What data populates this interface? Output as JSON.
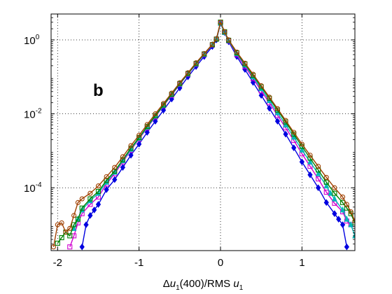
{
  "chart_data": {
    "type": "line",
    "panel_label": "b",
    "xlabel": {
      "prefix": "Δ",
      "var": "u",
      "sub": "1",
      "middle": "(400)/RMS ",
      "var2": "u",
      "sub2": "1"
    },
    "ylabel": "",
    "xlim": [
      -2.08,
      1.65
    ],
    "ylim_log10": [
      -5.7,
      0.7
    ],
    "y_scale": "log",
    "grid": true,
    "x_ticks": [
      {
        "value": -2,
        "label": "-2"
      },
      {
        "value": -1,
        "label": "-1"
      },
      {
        "value": 0,
        "label": "0"
      },
      {
        "value": 1,
        "label": "1"
      }
    ],
    "y_ticks": [
      {
        "exp": 0,
        "base": "10",
        "sup": "0"
      },
      {
        "exp": -2,
        "base": "10",
        "sup": "-2"
      },
      {
        "exp": -4,
        "base": "10",
        "sup": "-4"
      }
    ],
    "series": [
      {
        "color": "#0000e0",
        "marker": "diamond",
        "points": [
          [
            -1.7,
            -5.6
          ],
          [
            -1.65,
            -5.0
          ],
          [
            -1.6,
            -4.75
          ],
          [
            -1.55,
            -4.6
          ],
          [
            -1.5,
            -4.45
          ],
          [
            -1.4,
            -4.05
          ],
          [
            -1.3,
            -3.78
          ],
          [
            -1.2,
            -3.45
          ],
          [
            -1.1,
            -3.12
          ],
          [
            -1.0,
            -2.82
          ],
          [
            -0.9,
            -2.5
          ],
          [
            -0.8,
            -2.2
          ],
          [
            -0.7,
            -1.9
          ],
          [
            -0.6,
            -1.6
          ],
          [
            -0.5,
            -1.3
          ],
          [
            -0.4,
            -1.0
          ],
          [
            -0.3,
            -0.72
          ],
          [
            -0.2,
            -0.45
          ],
          [
            -0.1,
            -0.18
          ],
          [
            -0.05,
            0.0
          ],
          [
            0.0,
            0.45
          ],
          [
            0.05,
            0.2
          ],
          [
            0.1,
            -0.05
          ],
          [
            0.2,
            -0.45
          ],
          [
            0.3,
            -0.8
          ],
          [
            0.4,
            -1.15
          ],
          [
            0.5,
            -1.5
          ],
          [
            0.6,
            -1.85
          ],
          [
            0.7,
            -2.2
          ],
          [
            0.8,
            -2.55
          ],
          [
            0.9,
            -2.92
          ],
          [
            1.0,
            -3.3
          ],
          [
            1.1,
            -3.65
          ],
          [
            1.2,
            -4.0
          ],
          [
            1.3,
            -4.4
          ],
          [
            1.4,
            -4.7
          ],
          [
            1.45,
            -4.85
          ],
          [
            1.5,
            -5.0
          ],
          [
            1.55,
            -5.6
          ]
        ]
      },
      {
        "color": "#d000d0",
        "marker": "square",
        "points": [
          [
            -1.85,
            -5.6
          ],
          [
            -1.8,
            -5.3
          ],
          [
            -1.75,
            -4.95
          ],
          [
            -1.7,
            -4.7
          ],
          [
            -1.6,
            -4.45
          ],
          [
            -1.5,
            -4.25
          ],
          [
            -1.4,
            -3.9
          ],
          [
            -1.3,
            -3.62
          ],
          [
            -1.2,
            -3.3
          ],
          [
            -1.1,
            -2.98
          ],
          [
            -1.0,
            -2.68
          ],
          [
            -0.9,
            -2.38
          ],
          [
            -0.8,
            -2.08
          ],
          [
            -0.7,
            -1.78
          ],
          [
            -0.6,
            -1.5
          ],
          [
            -0.5,
            -1.2
          ],
          [
            -0.4,
            -0.93
          ],
          [
            -0.3,
            -0.66
          ],
          [
            -0.2,
            -0.4
          ],
          [
            -0.1,
            -0.14
          ],
          [
            -0.05,
            0.02
          ],
          [
            0.0,
            0.45
          ],
          [
            0.05,
            0.2
          ],
          [
            0.1,
            -0.03
          ],
          [
            0.2,
            -0.4
          ],
          [
            0.3,
            -0.72
          ],
          [
            0.4,
            -1.05
          ],
          [
            0.5,
            -1.38
          ],
          [
            0.6,
            -1.7
          ],
          [
            0.7,
            -2.04
          ],
          [
            0.8,
            -2.38
          ],
          [
            0.9,
            -2.72
          ],
          [
            1.0,
            -3.08
          ],
          [
            1.1,
            -3.42
          ],
          [
            1.2,
            -3.76
          ],
          [
            1.3,
            -4.12
          ],
          [
            1.4,
            -4.42
          ],
          [
            1.5,
            -4.65
          ],
          [
            1.55,
            -4.9
          ],
          [
            1.6,
            -5.0
          ]
        ]
      },
      {
        "color": "#00b8b8",
        "marker": "triangle",
        "points": [
          [
            -1.8,
            -5.1
          ],
          [
            -1.75,
            -4.85
          ],
          [
            -1.7,
            -4.6
          ],
          [
            -1.6,
            -4.35
          ],
          [
            -1.5,
            -4.15
          ],
          [
            -1.4,
            -3.85
          ],
          [
            -1.3,
            -3.58
          ],
          [
            -1.2,
            -3.27
          ],
          [
            -1.1,
            -2.96
          ],
          [
            -1.0,
            -2.66
          ],
          [
            -0.9,
            -2.36
          ],
          [
            -0.8,
            -2.06
          ],
          [
            -0.7,
            -1.77
          ],
          [
            -0.6,
            -1.48
          ],
          [
            -0.5,
            -1.19
          ],
          [
            -0.4,
            -0.92
          ],
          [
            -0.3,
            -0.65
          ],
          [
            -0.2,
            -0.39
          ],
          [
            -0.1,
            -0.13
          ],
          [
            -0.05,
            0.02
          ],
          [
            0.0,
            0.45
          ],
          [
            0.05,
            0.2
          ],
          [
            0.1,
            -0.02
          ],
          [
            0.2,
            -0.37
          ],
          [
            0.3,
            -0.68
          ],
          [
            0.4,
            -1.0
          ],
          [
            0.5,
            -1.32
          ],
          [
            0.6,
            -1.64
          ],
          [
            0.7,
            -1.97
          ],
          [
            0.8,
            -2.3
          ],
          [
            0.9,
            -2.63
          ],
          [
            1.0,
            -2.98
          ],
          [
            1.1,
            -3.3
          ],
          [
            1.2,
            -3.62
          ],
          [
            1.3,
            -3.95
          ],
          [
            1.35,
            -4.15
          ],
          [
            1.4,
            -4.3
          ],
          [
            1.5,
            -4.6
          ],
          [
            1.55,
            -4.85
          ],
          [
            1.6,
            -5.0
          ],
          [
            1.65,
            -5.3
          ]
        ]
      },
      {
        "color": "#008000",
        "marker": "square",
        "points": [
          [
            -2.0,
            -5.5
          ],
          [
            -1.95,
            -5.35
          ],
          [
            -1.9,
            -5.2
          ],
          [
            -1.85,
            -5.3
          ],
          [
            -1.8,
            -5.0
          ],
          [
            -1.75,
            -4.85
          ],
          [
            -1.7,
            -4.55
          ],
          [
            -1.6,
            -4.3
          ],
          [
            -1.5,
            -4.1
          ],
          [
            -1.4,
            -3.8
          ],
          [
            -1.3,
            -3.55
          ],
          [
            -1.2,
            -3.24
          ],
          [
            -1.1,
            -2.93
          ],
          [
            -1.0,
            -2.64
          ],
          [
            -0.9,
            -2.34
          ],
          [
            -0.8,
            -2.05
          ],
          [
            -0.7,
            -1.76
          ],
          [
            -0.6,
            -1.47
          ],
          [
            -0.5,
            -1.18
          ],
          [
            -0.4,
            -0.91
          ],
          [
            -0.3,
            -0.64
          ],
          [
            -0.2,
            -0.38
          ],
          [
            -0.1,
            -0.13
          ],
          [
            -0.05,
            0.02
          ],
          [
            0.0,
            0.48
          ],
          [
            0.05,
            0.22
          ],
          [
            0.1,
            -0.01
          ],
          [
            0.2,
            -0.35
          ],
          [
            0.3,
            -0.65
          ],
          [
            0.4,
            -0.96
          ],
          [
            0.5,
            -1.27
          ],
          [
            0.6,
            -1.58
          ],
          [
            0.7,
            -1.9
          ],
          [
            0.8,
            -2.22
          ],
          [
            0.9,
            -2.55
          ],
          [
            1.0,
            -2.88
          ],
          [
            1.1,
            -3.2
          ],
          [
            1.2,
            -3.52
          ],
          [
            1.3,
            -3.85
          ],
          [
            1.4,
            -4.15
          ],
          [
            1.5,
            -4.4
          ],
          [
            1.55,
            -4.55
          ],
          [
            1.6,
            -4.7
          ],
          [
            1.65,
            -4.95
          ]
        ]
      },
      {
        "color": "#a04000",
        "marker": "circle",
        "points": [
          [
            -2.05,
            -5.6
          ],
          [
            -2.0,
            -5.0
          ],
          [
            -1.95,
            -4.95
          ],
          [
            -1.9,
            -5.2
          ],
          [
            -1.85,
            -5.1
          ],
          [
            -1.8,
            -4.75
          ],
          [
            -1.75,
            -4.4
          ],
          [
            -1.7,
            -4.3
          ],
          [
            -1.6,
            -4.15
          ],
          [
            -1.5,
            -3.95
          ],
          [
            -1.4,
            -3.7
          ],
          [
            -1.3,
            -3.45
          ],
          [
            -1.2,
            -3.16
          ],
          [
            -1.1,
            -2.86
          ],
          [
            -1.0,
            -2.58
          ],
          [
            -0.9,
            -2.29
          ],
          [
            -0.8,
            -2.0
          ],
          [
            -0.7,
            -1.72
          ],
          [
            -0.6,
            -1.44
          ],
          [
            -0.5,
            -1.16
          ],
          [
            -0.4,
            -0.89
          ],
          [
            -0.3,
            -0.62
          ],
          [
            -0.2,
            -0.37
          ],
          [
            -0.1,
            -0.12
          ],
          [
            -0.05,
            0.03
          ],
          [
            0.0,
            0.48
          ],
          [
            0.05,
            0.22
          ],
          [
            0.1,
            0.0
          ],
          [
            0.2,
            -0.33
          ],
          [
            0.3,
            -0.63
          ],
          [
            0.4,
            -0.93
          ],
          [
            0.5,
            -1.24
          ],
          [
            0.6,
            -1.55
          ],
          [
            0.7,
            -1.86
          ],
          [
            0.8,
            -2.18
          ],
          [
            0.9,
            -2.5
          ],
          [
            1.0,
            -2.82
          ],
          [
            1.1,
            -3.12
          ],
          [
            1.2,
            -3.42
          ],
          [
            1.3,
            -3.72
          ],
          [
            1.4,
            -4.0
          ],
          [
            1.5,
            -4.25
          ],
          [
            1.55,
            -4.45
          ],
          [
            1.6,
            -4.65
          ],
          [
            1.65,
            -4.9
          ]
        ]
      }
    ]
  }
}
